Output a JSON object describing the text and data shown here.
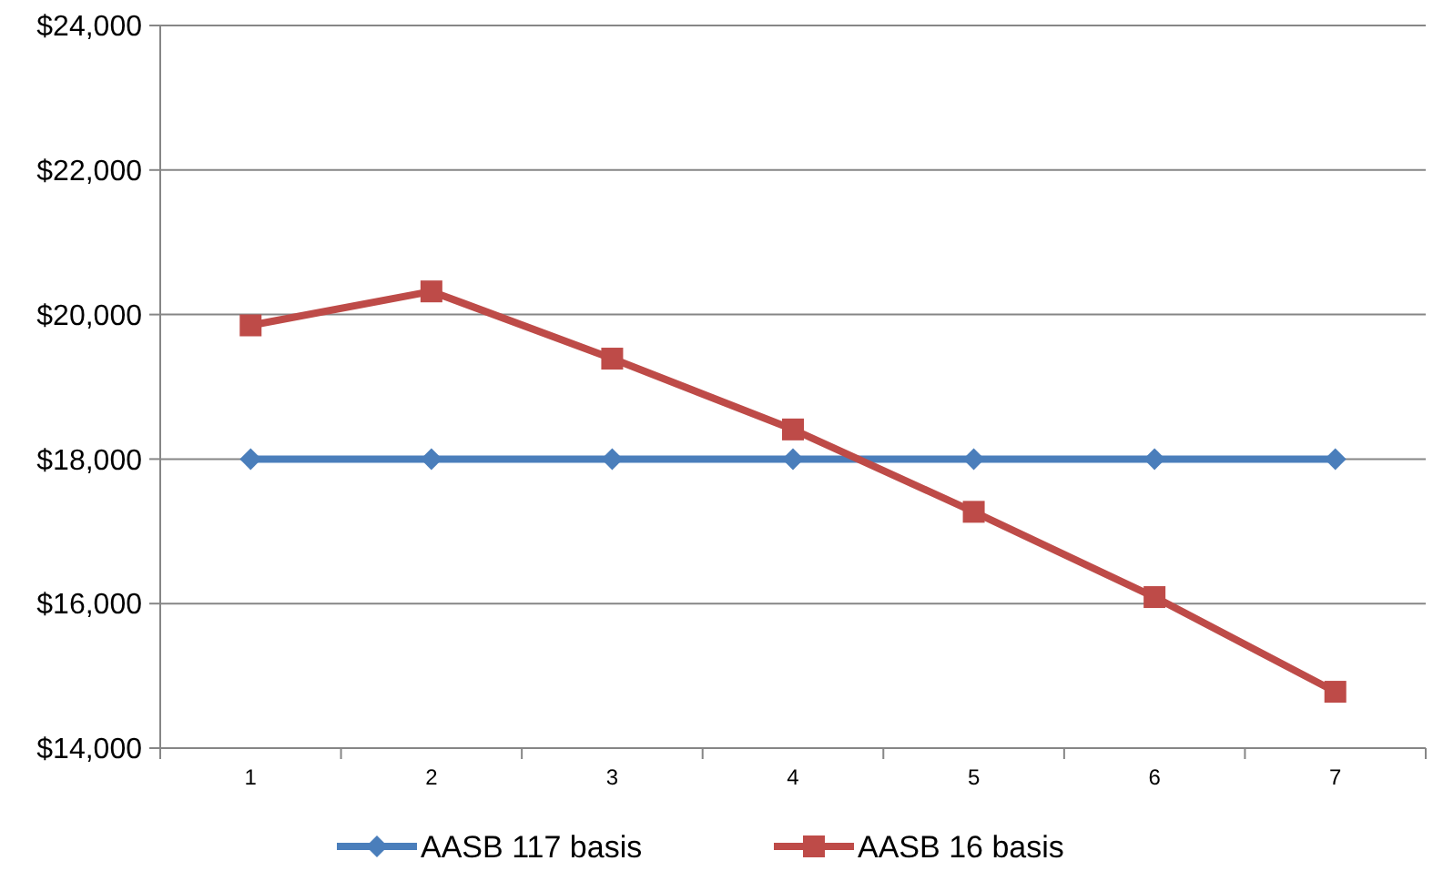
{
  "chart_data": {
    "type": "line",
    "categories": [
      "1",
      "2",
      "3",
      "4",
      "5",
      "6",
      "7"
    ],
    "series": [
      {
        "name": "AASB 117 basis",
        "color": "#4a7ebb",
        "marker": "diamond",
        "values": [
          18000,
          18000,
          18000,
          18000,
          18000,
          18000,
          18000
        ]
      },
      {
        "name": "AASB 16 basis",
        "color": "#be4b48",
        "marker": "square",
        "values": [
          19850,
          20320,
          19390,
          18410,
          17270,
          16090,
          14780
        ]
      }
    ],
    "ylim": [
      14000,
      24000
    ],
    "yticks": [
      {
        "value": 14000,
        "label": "$14,000"
      },
      {
        "value": 16000,
        "label": "$16,000"
      },
      {
        "value": 18000,
        "label": "$18,000"
      },
      {
        "value": 20000,
        "label": "$20,000"
      },
      {
        "value": 22000,
        "label": "$22,000"
      },
      {
        "value": 24000,
        "label": "$24,000"
      }
    ],
    "grid": "y",
    "legend": "bottom",
    "line_style": "solid"
  }
}
